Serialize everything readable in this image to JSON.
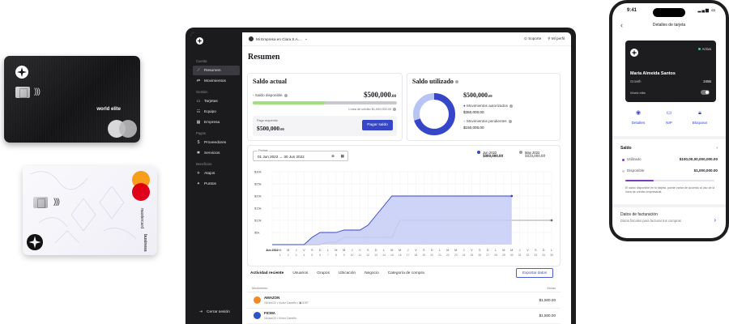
{
  "cards": {
    "black_card_label": "world elite",
    "white_card_network": "mastercard",
    "white_card_label": "business"
  },
  "sidebar": {
    "sections": [
      {
        "title": "Cuenta",
        "items": [
          {
            "label": "Resumen",
            "icon": "chart-line-icon",
            "active": true
          },
          {
            "label": "Movimientos",
            "icon": "arrows-icon"
          }
        ]
      },
      {
        "title": "Gestión",
        "items": [
          {
            "label": "Tarjetas",
            "icon": "card-icon"
          },
          {
            "label": "Equipo",
            "icon": "users-icon"
          },
          {
            "label": "Empresa",
            "icon": "building-icon"
          }
        ]
      },
      {
        "title": "Pagos",
        "items": [
          {
            "label": "Proveedores",
            "icon": "dollar-icon"
          },
          {
            "label": "Servicios",
            "icon": "services-icon"
          }
        ]
      },
      {
        "title": "Beneficios",
        "items": [
          {
            "label": "Atajos",
            "icon": "shortcut-icon"
          },
          {
            "label": "Puntos",
            "icon": "points-icon"
          }
        ]
      }
    ],
    "logout": "Cerrar sesión"
  },
  "topbar": {
    "company": "Mi Empresa en Clara S.A....",
    "support": "Soporte",
    "profile": "Mi perfil"
  },
  "page_title": "Resumen",
  "saldo_actual": {
    "title": "Saldo actual",
    "available_label": "Saldo disponible",
    "available_main": "$500,000",
    "available_cents": ".00",
    "credit_line": "Línea de crédito $1,000,000.00",
    "available_fraction": 0.5,
    "payment_label": "Pago requerido",
    "payment_main": "$500,000",
    "payment_cents": ".00",
    "pay_button": "Pagar saldo"
  },
  "saldo_utilizado": {
    "title": "Saldo utilizado",
    "total_main": "$500,000",
    "total_cents": ".00",
    "authorized_label": "Movimientos autorizados",
    "authorized_value": "$350,000.00",
    "pending_label": "Movimientos pendientes",
    "pending_value": "$150,000.00",
    "authorized_share": 0.7
  },
  "chart_panel": {
    "date_label": "Fechas",
    "date_range": "01 Jun 2022 → 30 Jun 2022",
    "legend": [
      {
        "name": "Jun 2022",
        "value": "$800,000.00",
        "color": "#3646c9"
      },
      {
        "name": "May 2022",
        "value": "$820,000.00",
        "color": "#9a9aa2"
      }
    ]
  },
  "chart_data": {
    "type": "area",
    "x_tick_labels": [
      "Jun 2022",
      "M",
      "M",
      "J",
      "V",
      "S",
      "D",
      "L",
      "M",
      "M",
      "J",
      "V",
      "S",
      "D",
      "L",
      "M",
      "M",
      "J",
      "V",
      "S",
      "D",
      "L",
      "M",
      "M",
      "J",
      "V",
      "S",
      "D",
      "L",
      "M",
      "M",
      "J",
      "V",
      "S",
      "D",
      "L"
    ],
    "y_tick_labels": [
      "$30k",
      "$25k",
      "$20k",
      "$15k",
      "$10k",
      "$5k"
    ],
    "ylim": [
      0,
      30000
    ],
    "series": [
      {
        "name": "Jun 2022",
        "values": [
          0,
          0,
          0,
          0,
          0,
          3000,
          5000,
          5000,
          5000,
          6000,
          6000,
          6000,
          8000,
          12000,
          16000,
          20000,
          20000,
          20000,
          20000,
          20000,
          20000,
          20000,
          20000,
          20000,
          20000,
          20000,
          20000,
          20000,
          20000,
          20000,
          20000
        ]
      },
      {
        "name": "May 2022",
        "values": [
          0,
          0,
          0,
          0,
          0,
          0,
          0,
          1000,
          1000,
          3000,
          3000,
          3000,
          3000,
          3000,
          3000,
          3000,
          10000,
          10000,
          10000,
          10000,
          10000,
          10000,
          10000,
          10000,
          10000,
          10000,
          10000,
          10000,
          10000,
          10000,
          10000,
          10000,
          10000,
          10000,
          10000,
          10000
        ]
      }
    ]
  },
  "tabs": [
    "Actividad reciente",
    "Usuarios",
    "Grupos",
    "Ubicación",
    "Negocio",
    "Categoría de compra"
  ],
  "export_button": "Exportar datos",
  "table": {
    "col_movement": "Movimiento",
    "col_amount": "Monto",
    "rows": [
      {
        "name": "AMAZON",
        "meta": "15/Jun/22 • Víctor Carreño • ▣ 8197",
        "amount": "$1,500.00",
        "color": "#f08a24"
      },
      {
        "name": "FICMA",
        "meta": "15/Jun/22 • Víctor Carreño",
        "amount": "$1,500.00",
        "color": "#2f56c8"
      }
    ]
  },
  "phone": {
    "time": "9:41",
    "header": "Detalles de tarjeta",
    "card_status": "Activa",
    "card_holder": "Maria Almeida Santos",
    "card_plan": "Growth",
    "card_last4": "2456",
    "card_brand": "World elite",
    "actions": [
      {
        "label": "Detalles",
        "icon": "eye-icon"
      },
      {
        "label": "NIP",
        "icon": "card-icon"
      },
      {
        "label": "Bloquear",
        "icon": "lock-icon"
      }
    ],
    "saldo_title": "Saldo",
    "used_label": "Utilizado",
    "used_value": "$100,00,00,000,000.00",
    "available_label": "Disponible",
    "available_value": "$1,000,000.00",
    "used_fraction": 0.32,
    "note": "El saldo disponible en tu tarjeta, puede variar de acuerdo al uso de la línea de crédito empresarial.",
    "billing_title": "Datos de facturación",
    "billing_subtitle": "Datos fiscales para facturar tus compras"
  }
}
